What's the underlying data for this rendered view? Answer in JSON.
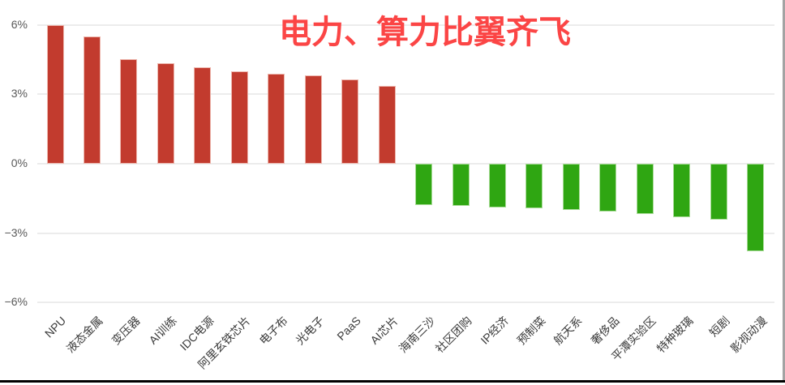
{
  "chart_data": {
    "type": "bar",
    "title": "电力、算力比翼齐飞",
    "categories": [
      "NPU",
      "液态金属",
      "变压器",
      "AI训练",
      "IDC电源",
      "阿里玄铁芯片",
      "电子布",
      "光电子",
      "PaaS",
      "AI芯片",
      "海南三沙",
      "社区团购",
      "IP经济",
      "预制菜",
      "航天系",
      "奢侈品",
      "平潭实验区",
      "特种玻璃",
      "短剧",
      "影视动漫"
    ],
    "values": [
      6.0,
      5.5,
      4.5,
      4.35,
      4.15,
      4.0,
      3.9,
      3.8,
      3.65,
      3.35,
      -1.8,
      -1.82,
      -1.88,
      -1.92,
      -2.0,
      -2.08,
      -2.18,
      -2.32,
      -2.4,
      -3.78
    ],
    "unit": "%",
    "xlabel": "",
    "ylabel": "",
    "ylim": [
      -6,
      6
    ],
    "y_axis": {
      "ticks": [
        {
          "value": 6,
          "label": "6%"
        },
        {
          "value": 3,
          "label": "3%"
        },
        {
          "value": 0,
          "label": "0%"
        },
        {
          "value": -3,
          "label": "−3%"
        },
        {
          "value": -6,
          "label": "−6%"
        }
      ]
    },
    "grid": "horizontal-only",
    "legend": "none",
    "bar_color_rule": "positive values red, negative values green",
    "colors": {
      "positive_bar": "#c23b2e",
      "positive_bar_border": "#edb6ad",
      "negative_bar": "#2fa612",
      "negative_bar_border": "#aadc99",
      "title": "#fb4545",
      "grid_line": "#ececec",
      "tick_text": "#595959",
      "category_text": "#3a3a3a",
      "frame_right_border": "#a3a3a3",
      "frame_bottom_border": "#000000"
    }
  }
}
